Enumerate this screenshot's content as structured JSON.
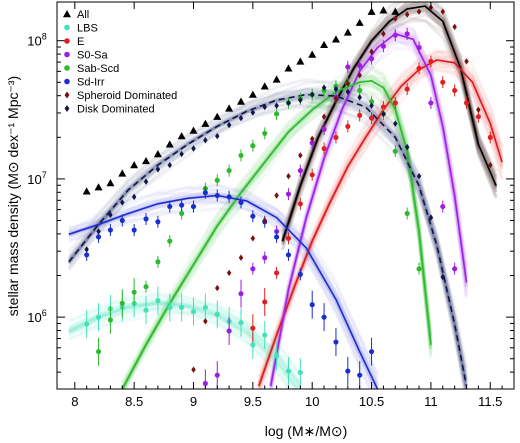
{
  "chart_data": {
    "type": "line",
    "title": "",
    "xlabel": "log (M∗/M⊙)",
    "ylabel": "stellar mass density (M⊙ dex⁻¹ Mpc⁻³)",
    "xlim": [
      7.85,
      11.7
    ],
    "ylog": true,
    "ylim_log10": [
      5.48,
      8.28
    ],
    "x_ticks": [
      "8",
      "8.5",
      "9",
      "9.5",
      "10",
      "10.5",
      "11",
      "11.5"
    ],
    "x_tick_values": [
      8,
      8.5,
      9,
      9.5,
      10,
      10.5,
      11,
      11.5
    ],
    "y_ticks": [
      {
        "base": "10",
        "exp": "6",
        "log": 6
      },
      {
        "base": "10",
        "exp": "7",
        "log": 7
      },
      {
        "base": "10",
        "exp": "8",
        "log": 8
      }
    ],
    "grid": false,
    "legend_position": "top-left",
    "series": [
      {
        "name": "All",
        "color": "#000000",
        "marker": "triangle",
        "points": [
          [
            8.1,
            6.91
          ],
          [
            8.2,
            6.94
          ],
          [
            8.3,
            6.97
          ],
          [
            8.4,
            7.04
          ],
          [
            8.5,
            7.1
          ],
          [
            8.6,
            7.13
          ],
          [
            8.7,
            7.18
          ],
          [
            8.8,
            7.25
          ],
          [
            8.9,
            7.31
          ],
          [
            9.0,
            7.35
          ],
          [
            9.1,
            7.4
          ],
          [
            9.2,
            7.45
          ],
          [
            9.3,
            7.51
          ],
          [
            9.4,
            7.56
          ],
          [
            9.5,
            7.61
          ],
          [
            9.6,
            7.67
          ],
          [
            9.7,
            7.72
          ],
          [
            9.8,
            7.8
          ],
          [
            9.9,
            7.85
          ],
          [
            10.0,
            7.9
          ],
          [
            10.1,
            7.97
          ],
          [
            10.2,
            8.01
          ],
          [
            10.3,
            8.06
          ],
          [
            10.4,
            8.13
          ],
          [
            10.5,
            8.21
          ],
          [
            10.6,
            8.22
          ],
          [
            10.7,
            8.21
          ]
        ]
      },
      {
        "name": "LBS",
        "color": "#44e0b8",
        "marker": "circle",
        "points": [
          [
            8.1,
            5.95
          ],
          [
            8.2,
            6.0
          ],
          [
            8.3,
            6.06
          ],
          [
            8.4,
            6.07
          ],
          [
            8.5,
            6.1
          ],
          [
            8.6,
            6.05
          ],
          [
            8.7,
            6.12
          ],
          [
            8.8,
            6.07
          ],
          [
            8.9,
            6.07
          ],
          [
            9.0,
            6.04
          ],
          [
            9.1,
            6.07
          ],
          [
            9.2,
            6.02
          ],
          [
            9.3,
            5.97
          ],
          [
            9.4,
            5.96
          ],
          [
            9.5,
            5.8
          ],
          [
            9.6,
            5.87
          ],
          [
            9.7,
            5.72
          ],
          [
            9.8,
            5.61
          ],
          [
            9.9,
            5.6
          ]
        ]
      },
      {
        "name": "E",
        "color": "#e02020",
        "marker": "circle",
        "points": [
          [
            9.5,
            5.92
          ],
          [
            9.6,
            6.11
          ],
          [
            9.7,
            6.32
          ],
          [
            9.8,
            6.57
          ],
          [
            9.9,
            6.82
          ],
          [
            10.0,
            7.03
          ],
          [
            10.1,
            7.22
          ],
          [
            10.2,
            7.3
          ],
          [
            10.3,
            7.38
          ],
          [
            10.4,
            7.46
          ],
          [
            10.5,
            7.44
          ],
          [
            10.6,
            7.52
          ],
          [
            10.7,
            7.55
          ],
          [
            10.8,
            7.65
          ],
          [
            10.9,
            7.8
          ],
          [
            11.0,
            7.85
          ],
          [
            11.1,
            7.7
          ],
          [
            11.2,
            7.64
          ],
          [
            11.3,
            7.55
          ],
          [
            11.4,
            7.45
          ],
          [
            11.5,
            7.3
          ]
        ]
      },
      {
        "name": "S0-Sa",
        "color": "#9c1ee0",
        "marker": "circle",
        "points": [
          [
            9.1,
            5.52
          ],
          [
            9.2,
            5.58
          ],
          [
            9.3,
            5.9
          ],
          [
            9.4,
            6.17
          ],
          [
            9.5,
            6.35
          ],
          [
            9.6,
            6.43
          ],
          [
            9.7,
            6.62
          ],
          [
            9.8,
            6.89
          ],
          [
            9.9,
            7.06
          ],
          [
            10.0,
            7.26
          ],
          [
            10.1,
            7.36
          ],
          [
            10.2,
            7.59
          ],
          [
            10.3,
            7.81
          ],
          [
            10.4,
            7.82
          ],
          [
            10.5,
            7.87
          ],
          [
            10.6,
            7.96
          ],
          [
            10.7,
            8.04
          ],
          [
            10.8,
            8.05
          ],
          [
            10.9,
            7.95
          ],
          [
            11.0,
            7.55
          ],
          [
            11.1,
            6.8
          ],
          [
            11.2,
            6.35
          ]
        ]
      },
      {
        "name": "Sab-Scd",
        "color": "#2eb82e",
        "marker": "circle",
        "points": [
          [
            8.2,
            5.75
          ],
          [
            8.3,
            5.98
          ],
          [
            8.4,
            6.1
          ],
          [
            8.5,
            6.18
          ],
          [
            8.6,
            6.22
          ],
          [
            8.7,
            6.4
          ],
          [
            8.8,
            6.55
          ],
          [
            8.9,
            6.75
          ],
          [
            9.0,
            6.8
          ],
          [
            9.1,
            6.93
          ],
          [
            9.2,
            6.99
          ],
          [
            9.3,
            7.06
          ],
          [
            9.4,
            7.17
          ],
          [
            9.5,
            7.24
          ],
          [
            9.6,
            7.33
          ],
          [
            9.7,
            7.47
          ],
          [
            9.8,
            7.55
          ],
          [
            9.9,
            7.58
          ],
          [
            10.0,
            7.61
          ],
          [
            10.1,
            7.64
          ],
          [
            10.2,
            7.67
          ],
          [
            10.3,
            7.69
          ],
          [
            10.4,
            7.64
          ],
          [
            10.5,
            7.56
          ],
          [
            10.6,
            7.47
          ],
          [
            10.7,
            7.2
          ],
          [
            10.8,
            6.75
          ],
          [
            10.9,
            6.35
          ]
        ]
      },
      {
        "name": "Sd-Irr",
        "color": "#1a2ed0",
        "marker": "circle",
        "points": [
          [
            8.1,
            6.45
          ],
          [
            8.2,
            6.58
          ],
          [
            8.3,
            6.63
          ],
          [
            8.4,
            6.7
          ],
          [
            8.5,
            6.63
          ],
          [
            8.6,
            6.71
          ],
          [
            8.7,
            6.69
          ],
          [
            8.8,
            6.8
          ],
          [
            8.9,
            6.81
          ],
          [
            9.0,
            6.8
          ],
          [
            9.1,
            6.9
          ],
          [
            9.2,
            6.88
          ],
          [
            9.3,
            6.87
          ],
          [
            9.4,
            6.83
          ],
          [
            9.5,
            6.73
          ],
          [
            9.6,
            6.69
          ],
          [
            9.7,
            6.58
          ],
          [
            9.8,
            6.45
          ],
          [
            9.9,
            6.31
          ],
          [
            10.0,
            6.09
          ],
          [
            10.1,
            6.0
          ],
          [
            10.2,
            5.82
          ],
          [
            10.3,
            5.61
          ],
          [
            10.4,
            5.58
          ],
          [
            10.5,
            5.75
          ]
        ]
      },
      {
        "name": "Spheroid Dominated",
        "color": "#7a1010",
        "marker": "diamond",
        "points": [
          [
            9.0,
            5.62
          ],
          [
            9.1,
            5.97
          ],
          [
            9.2,
            6.21
          ],
          [
            9.3,
            6.32
          ],
          [
            9.4,
            6.43
          ],
          [
            9.5,
            6.57
          ],
          [
            9.6,
            6.7
          ],
          [
            9.7,
            6.88
          ],
          [
            9.8,
            7.02
          ],
          [
            9.9,
            7.17
          ],
          [
            10.0,
            7.29
          ],
          [
            10.1,
            7.45
          ],
          [
            10.2,
            7.58
          ],
          [
            10.3,
            7.69
          ],
          [
            10.4,
            7.75
          ],
          [
            10.5,
            7.92
          ],
          [
            10.6,
            8.05
          ],
          [
            10.7,
            8.16
          ],
          [
            10.8,
            8.19
          ],
          [
            10.9,
            8.21
          ],
          [
            11.0,
            8.24
          ],
          [
            11.1,
            8.21
          ],
          [
            11.2,
            8.1
          ],
          [
            11.3,
            7.85
          ],
          [
            11.4,
            7.5
          ],
          [
            11.5,
            7.1
          ]
        ]
      },
      {
        "name": "Disk Dominated",
        "color": "#141450",
        "marker": "diamond",
        "points": [
          [
            8.1,
            6.49
          ],
          [
            8.2,
            6.62
          ],
          [
            8.3,
            6.74
          ],
          [
            8.4,
            6.83
          ],
          [
            8.5,
            6.87
          ],
          [
            8.6,
            6.98
          ],
          [
            8.7,
            7.07
          ],
          [
            8.8,
            7.1
          ],
          [
            8.9,
            7.18
          ],
          [
            9.0,
            7.22
          ],
          [
            9.1,
            7.28
          ],
          [
            9.2,
            7.31
          ],
          [
            9.3,
            7.39
          ],
          [
            9.4,
            7.44
          ],
          [
            9.5,
            7.48
          ],
          [
            9.6,
            7.52
          ],
          [
            9.7,
            7.53
          ],
          [
            9.8,
            7.55
          ],
          [
            9.9,
            7.57
          ],
          [
            10.0,
            7.61
          ],
          [
            10.1,
            7.66
          ],
          [
            10.2,
            7.65
          ],
          [
            10.3,
            7.63
          ],
          [
            10.4,
            7.59
          ],
          [
            10.5,
            7.53
          ],
          [
            10.6,
            7.47
          ],
          [
            10.7,
            7.4
          ],
          [
            10.8,
            7.23
          ],
          [
            10.9,
            7.02
          ],
          [
            11.0,
            6.72
          ],
          [
            11.1,
            6.29
          ]
        ]
      }
    ],
    "fit_curves": [
      {
        "series": "All",
        "color": "#000000",
        "style": "solid",
        "band": "#2a0505",
        "x": [
          9.75,
          9.9,
          10.05,
          10.2,
          10.35,
          10.5,
          10.65,
          10.8,
          10.95,
          11.1,
          11.25,
          11.4,
          11.55
        ],
        "y": [
          6.55,
          6.95,
          7.3,
          7.56,
          7.8,
          8.0,
          8.14,
          8.23,
          8.25,
          8.14,
          7.8,
          7.25,
          6.95
        ]
      },
      {
        "series": "E",
        "color": "#d81c1c",
        "style": "solid",
        "band": "#f06868",
        "x": [
          9.55,
          9.7,
          9.85,
          10.0,
          10.15,
          10.3,
          10.45,
          10.6,
          10.75,
          10.9,
          11.05,
          11.2,
          11.35,
          11.5,
          11.6
        ],
        "y": [
          5.5,
          5.87,
          6.22,
          6.55,
          6.83,
          7.09,
          7.3,
          7.5,
          7.67,
          7.79,
          7.86,
          7.84,
          7.7,
          7.4,
          7.12
        ]
      },
      {
        "series": "S0-Sa",
        "color": "#a020e8",
        "style": "solid",
        "band": "#c070f0",
        "x": [
          9.65,
          9.8,
          9.95,
          10.1,
          10.25,
          10.4,
          10.55,
          10.7,
          10.85,
          11.0,
          11.1,
          11.2,
          11.3
        ],
        "y": [
          5.5,
          6.2,
          6.72,
          7.15,
          7.5,
          7.78,
          7.95,
          8.05,
          8.01,
          7.75,
          7.38,
          6.88,
          6.25
        ]
      },
      {
        "series": "Sab-Scd",
        "color": "#2eb82e",
        "style": "solid",
        "band": "#4ecf4e",
        "x": [
          8.4,
          8.6,
          8.8,
          9.0,
          9.2,
          9.4,
          9.6,
          9.8,
          10.0,
          10.2,
          10.4,
          10.5,
          10.6,
          10.7,
          10.8,
          10.9,
          11.0
        ],
        "y": [
          5.48,
          5.8,
          6.1,
          6.38,
          6.66,
          6.9,
          7.12,
          7.34,
          7.5,
          7.63,
          7.7,
          7.71,
          7.66,
          7.5,
          7.2,
          6.62,
          5.8
        ]
      },
      {
        "series": "Sd-Irr",
        "color": "#1a2ed0",
        "style": "solid",
        "band": "#8080e8",
        "x": [
          7.95,
          8.2,
          8.45,
          8.7,
          8.95,
          9.2,
          9.45,
          9.7,
          9.95,
          10.2,
          10.4,
          10.55
        ],
        "y": [
          6.6,
          6.67,
          6.75,
          6.82,
          6.86,
          6.88,
          6.84,
          6.72,
          6.5,
          6.13,
          5.75,
          5.48
        ]
      },
      {
        "series": "Disk Dominated",
        "color": "#14144a",
        "style": "dashed",
        "band": "#404a7a",
        "x": [
          7.95,
          8.2,
          8.45,
          8.7,
          8.95,
          9.2,
          9.45,
          9.7,
          9.95,
          10.2,
          10.45,
          10.7,
          10.9,
          11.05,
          11.2,
          11.3
        ],
        "y": [
          6.4,
          6.67,
          6.92,
          7.1,
          7.25,
          7.38,
          7.49,
          7.57,
          7.61,
          7.6,
          7.52,
          7.3,
          6.95,
          6.52,
          5.95,
          5.5
        ]
      },
      {
        "series": "LBS",
        "color": "#48e0bc",
        "style": "band-only",
        "band": "#48e0bc",
        "x": [
          7.95,
          8.2,
          8.45,
          8.7,
          8.95,
          9.2,
          9.45,
          9.7,
          9.9
        ],
        "y": [
          5.9,
          6.0,
          6.07,
          6.1,
          6.08,
          6.02,
          5.9,
          5.7,
          5.48
        ]
      }
    ]
  },
  "legend": {
    "items": [
      {
        "label": "All",
        "color": "#000000",
        "marker": "triangle"
      },
      {
        "label": "LBS",
        "color": "#44e0b8",
        "marker": "circle"
      },
      {
        "label": "E",
        "color": "#e02020",
        "marker": "circle"
      },
      {
        "label": "S0-Sa",
        "color": "#9c1ee0",
        "marker": "circle"
      },
      {
        "label": "Sab-Scd",
        "color": "#2eb82e",
        "marker": "circle"
      },
      {
        "label": "Sd-Irr",
        "color": "#1a2ed0",
        "marker": "circle"
      },
      {
        "label": "Spheroid Dominated",
        "color": "#7a1010",
        "marker": "diamond"
      },
      {
        "label": "Disk Dominated",
        "color": "#141450",
        "marker": "diamond"
      }
    ]
  }
}
